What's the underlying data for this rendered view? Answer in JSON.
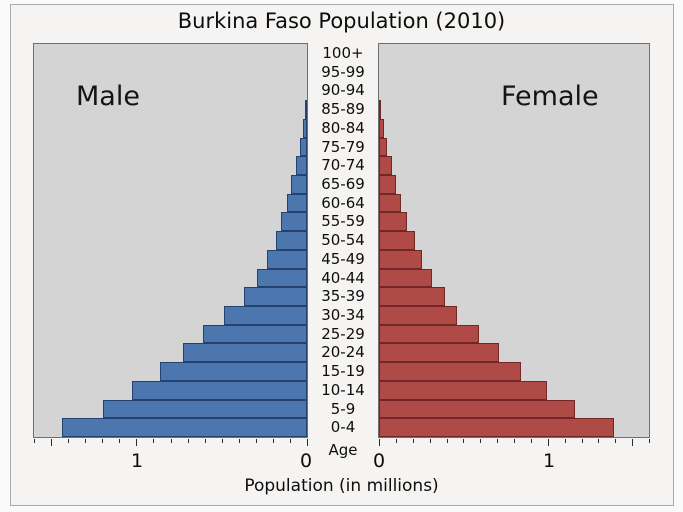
{
  "title": "Burkina Faso Population (2010)",
  "xlabel": "Population (in millions)",
  "age_axis_label": "Age",
  "panels": {
    "male_label": "Male",
    "female_label": "Female"
  },
  "axis": {
    "left_one": "1",
    "left_zero": "0",
    "right_zero": "0",
    "right_one": "1"
  },
  "colors": {
    "male_fill": "#4b77ae",
    "male_edge": "#24426f",
    "female_fill": "#b04a47",
    "female_edge": "#702826",
    "panel_background": "#d4d4d4",
    "figure_background": "#f5f4f2"
  },
  "chart_data": {
    "type": "bar",
    "subtype": "population_pyramid",
    "title": "Burkina Faso Population (2010)",
    "xlabel": "Population (in millions)",
    "ylabel": "Age",
    "units": "millions of people",
    "categories_top_to_bottom": [
      "100+",
      "95-99",
      "90-94",
      "85-89",
      "80-84",
      "75-79",
      "70-74",
      "65-69",
      "60-64",
      "55-59",
      "50-54",
      "45-49",
      "40-44",
      "35-39",
      "30-34",
      "25-29",
      "20-24",
      "15-19",
      "10-14",
      "5-9",
      "0-4"
    ],
    "series": [
      {
        "name": "Male",
        "side": "left",
        "values": [
          0.0,
          0.001,
          0.003,
          0.01,
          0.025,
          0.043,
          0.065,
          0.092,
          0.12,
          0.15,
          0.18,
          0.233,
          0.295,
          0.37,
          0.488,
          0.61,
          0.727,
          0.862,
          1.023,
          1.196,
          1.434
        ]
      },
      {
        "name": "Female",
        "side": "right",
        "values": [
          0.0,
          0.001,
          0.005,
          0.014,
          0.029,
          0.047,
          0.075,
          0.102,
          0.133,
          0.163,
          0.216,
          0.255,
          0.314,
          0.392,
          0.465,
          0.592,
          0.71,
          0.843,
          0.994,
          1.16,
          1.39
        ]
      }
    ],
    "xlim_each_side": [
      0,
      1.6
    ],
    "x_major_ticks": [
      0,
      1.0,
      1.5
    ],
    "x_labeled_ticks": [
      0,
      1.0
    ],
    "x_minor_step": 0.1,
    "grid": false,
    "legend_position": "labels inside panels"
  }
}
